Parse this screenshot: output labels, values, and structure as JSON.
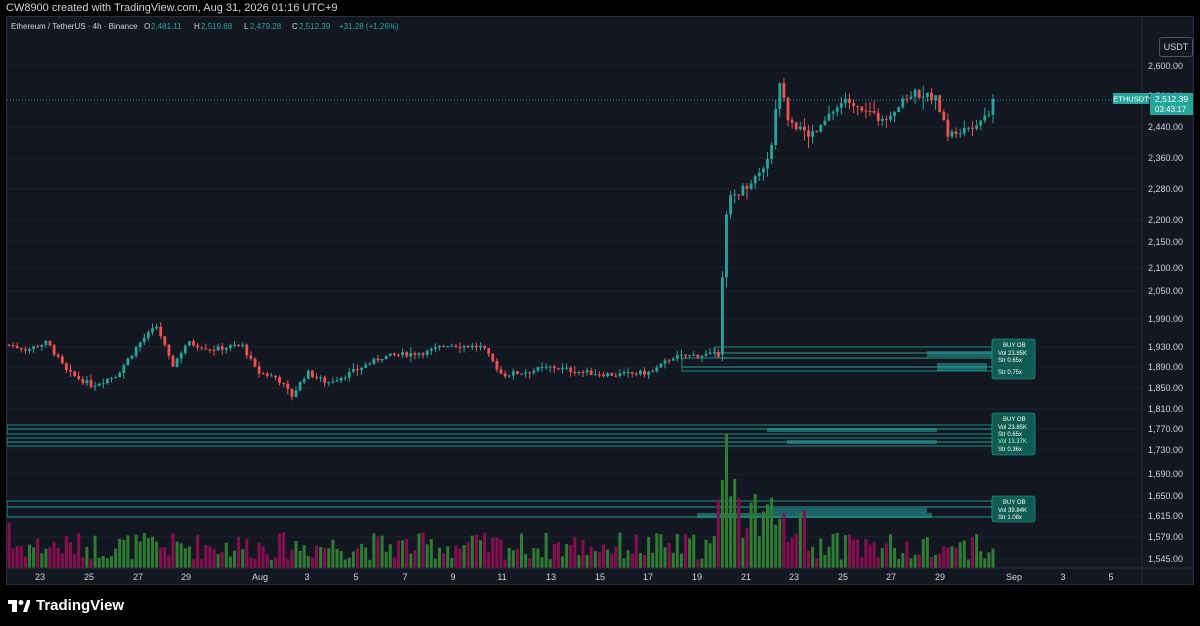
{
  "header": {
    "creator_line": "CW8900 created with TradingView.com, Aug 31, 2026 01:16 UTC+9"
  },
  "symbol": {
    "title": "Ethereum / TetherUS · 4h · Binance",
    "open_label": "O",
    "open": "2,481.11",
    "high_label": "H",
    "high": "2,519.68",
    "low_label": "L",
    "low": "2,479.28",
    "close_label": "C",
    "close": "2,512.39",
    "change": "+31.28 (+1.26%)"
  },
  "currency_button": "USDT",
  "price_axis": {
    "ticks": [
      "2,600.00",
      "2,520.00",
      "2,440.00",
      "2,360.00",
      "2,280.00",
      "2,200.00",
      "2,150.00",
      "2,100.00",
      "2,050.00",
      "1,990.00",
      "1,930.00",
      "1,890.00",
      "1,850.00",
      "1,810.00",
      "1,770.00",
      "1,730.00",
      "1,690.00",
      "1,650.00",
      "1,615.00",
      "1,579.00",
      "1,545.00"
    ],
    "last_symbol": "ETHUSDT",
    "last_price": "2,512.39",
    "countdown": "03:43:17"
  },
  "time_axis": {
    "ticks": [
      "23",
      "25",
      "27",
      "29",
      "Aug",
      "3",
      "5",
      "7",
      "9",
      "11",
      "13",
      "15",
      "17",
      "19",
      "21",
      "23",
      "25",
      "27",
      "29",
      "Sep",
      "3",
      "5"
    ]
  },
  "order_blocks": [
    {
      "title": "BUY OB",
      "lines": [
        "Vol 23.85K",
        "Str 0.65x",
        "Str 0.75x"
      ]
    },
    {
      "title": "BUY OB",
      "lines": [
        "Vol 23.85K",
        "Str 0.65x",
        "Vol 13.37K",
        "Str 0.36x"
      ]
    },
    {
      "title": "BUY OB",
      "lines": [
        "Vol 39.84K",
        "Str 1.08x"
      ]
    }
  ],
  "footer": {
    "brand": "TradingView"
  },
  "colors": {
    "up": "#26a69a",
    "down": "#ef5350",
    "background": "#131722",
    "vol_up": "#2e7d32",
    "vol_down": "#880e4f",
    "ob": "#26a69a"
  },
  "chart_data": {
    "type": "candlestick",
    "timeframe": "4h",
    "y_range": [
      1530,
      2640
    ],
    "key_closes": [
      {
        "date": "Jul 22",
        "price": 1935
      },
      {
        "date": "Jul 25",
        "price": 1860
      },
      {
        "date": "Jul 27",
        "price": 1980
      },
      {
        "date": "Jul 29",
        "price": 1900
      },
      {
        "date": "Aug 2",
        "price": 1840
      },
      {
        "date": "Aug 7",
        "price": 1910
      },
      {
        "date": "Aug 11",
        "price": 1900
      },
      {
        "date": "Aug 15",
        "price": 1880
      },
      {
        "date": "Aug 19",
        "price": 1915
      },
      {
        "date": "Aug 20",
        "price": 2270
      },
      {
        "date": "Aug 22",
        "price": 2520
      },
      {
        "date": "Aug 25",
        "price": 2520
      },
      {
        "date": "Aug 28",
        "price": 2530
      },
      {
        "date": "Aug 30",
        "price": 2470
      },
      {
        "date": "Aug 30",
        "price": 2512.39
      }
    ]
  }
}
